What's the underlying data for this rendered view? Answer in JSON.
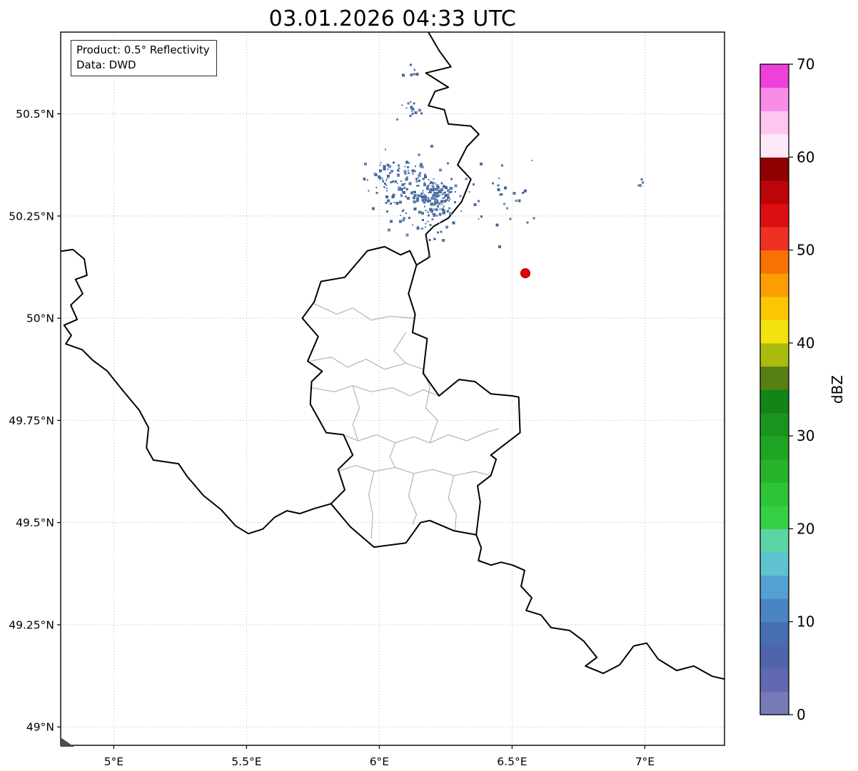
{
  "title": "03.01.2026 04:33 UTC",
  "annotation": {
    "line1": "Product: 0.5° Reflectivity",
    "line2": "Data: DWD"
  },
  "map": {
    "extent": {
      "lon_min": 4.8,
      "lon_max": 7.3,
      "lat_min": 48.955,
      "lat_max": 50.7
    },
    "x_ticks": [
      {
        "value": 5.0,
        "label": "5°E"
      },
      {
        "value": 5.5,
        "label": "5.5°E"
      },
      {
        "value": 6.0,
        "label": "6°E"
      },
      {
        "value": 6.5,
        "label": "6.5°E"
      },
      {
        "value": 7.0,
        "label": "7°E"
      }
    ],
    "y_ticks": [
      {
        "value": 50.5,
        "label": "50.5°N"
      },
      {
        "value": 50.25,
        "label": "50.25°N"
      },
      {
        "value": 50.0,
        "label": "50°N"
      },
      {
        "value": 49.75,
        "label": "49.75°N"
      },
      {
        "value": 49.5,
        "label": "49.5°N"
      },
      {
        "value": 49.25,
        "label": "49.25°N"
      },
      {
        "value": 49.0,
        "label": "49°N"
      }
    ],
    "style": {
      "country_color": "#000000",
      "internal_color": "#b3b3b3",
      "grid_color": "#b5b5b5",
      "frame_color": "#000000"
    },
    "borders": {
      "country": [
        [
          [
            6.14,
            50.13
          ],
          [
            6.19,
            50.15
          ],
          [
            6.175,
            50.205
          ],
          [
            6.205,
            50.225
          ],
          [
            6.26,
            50.245
          ],
          [
            6.31,
            50.285
          ],
          [
            6.345,
            50.34
          ],
          [
            6.295,
            50.375
          ],
          [
            6.33,
            50.42
          ],
          [
            6.375,
            50.45
          ],
          [
            6.345,
            50.47
          ],
          [
            6.26,
            50.475
          ],
          [
            6.245,
            50.51
          ],
          [
            6.185,
            50.52
          ],
          [
            6.21,
            50.555
          ],
          [
            6.26,
            50.565
          ],
          [
            6.175,
            50.6
          ],
          [
            6.27,
            50.615
          ],
          [
            6.225,
            50.655
          ],
          [
            6.18,
            50.705
          ]
        ],
        [
          [
            6.02,
            50.175
          ],
          [
            6.08,
            50.155
          ],
          [
            6.115,
            50.165
          ],
          [
            6.14,
            50.13
          ],
          [
            6.11,
            50.06
          ],
          [
            6.135,
            50.01
          ],
          [
            6.125,
            49.965
          ],
          [
            6.18,
            49.95
          ],
          [
            6.165,
            49.865
          ],
          [
            6.225,
            49.81
          ],
          [
            6.3,
            49.85
          ],
          [
            6.36,
            49.845
          ],
          [
            6.42,
            49.815
          ],
          [
            6.5,
            49.81
          ],
          [
            6.525,
            49.807
          ],
          [
            6.53,
            49.72
          ],
          [
            6.5,
            49.705
          ],
          [
            6.42,
            49.665
          ],
          [
            6.44,
            49.655
          ],
          [
            6.42,
            49.615
          ],
          [
            6.37,
            49.59
          ],
          [
            6.38,
            49.55
          ],
          [
            6.365,
            49.47
          ],
          [
            6.28,
            49.48
          ],
          [
            6.19,
            49.505
          ],
          [
            6.155,
            49.5
          ],
          [
            6.1,
            49.45
          ],
          [
            5.98,
            49.44
          ],
          [
            5.89,
            49.49
          ],
          [
            5.818,
            49.546
          ],
          [
            5.87,
            49.58
          ],
          [
            5.845,
            49.63
          ],
          [
            5.9,
            49.665
          ],
          [
            5.865,
            49.715
          ],
          [
            5.8,
            49.72
          ],
          [
            5.74,
            49.79
          ],
          [
            5.745,
            49.845
          ],
          [
            5.785,
            49.87
          ],
          [
            5.73,
            49.895
          ],
          [
            5.77,
            49.955
          ],
          [
            5.71,
            50.0
          ],
          [
            5.755,
            50.04
          ],
          [
            5.78,
            50.09
          ],
          [
            5.87,
            50.1
          ],
          [
            5.955,
            50.165
          ],
          [
            6.02,
            50.175
          ]
        ],
        [
          [
            4.8,
            50.164
          ],
          [
            4.846,
            50.168
          ],
          [
            4.889,
            50.145
          ],
          [
            4.899,
            50.105
          ],
          [
            4.856,
            50.095
          ],
          [
            4.883,
            50.06
          ],
          [
            4.838,
            50.032
          ],
          [
            4.862,
            49.997
          ],
          [
            4.813,
            49.983
          ],
          [
            4.84,
            49.958
          ],
          [
            4.819,
            49.937
          ],
          [
            4.881,
            49.923
          ],
          [
            4.921,
            49.897
          ],
          [
            4.975,
            49.871
          ],
          [
            5.028,
            49.828
          ],
          [
            5.096,
            49.775
          ],
          [
            5.131,
            49.732
          ],
          [
            5.123,
            49.683
          ],
          [
            5.149,
            49.653
          ],
          [
            5.244,
            49.644
          ],
          [
            5.276,
            49.613
          ],
          [
            5.338,
            49.566
          ],
          [
            5.405,
            49.531
          ],
          [
            5.459,
            49.492
          ],
          [
            5.507,
            49.473
          ],
          [
            5.561,
            49.484
          ],
          [
            5.606,
            49.513
          ],
          [
            5.652,
            49.529
          ],
          [
            5.701,
            49.522
          ],
          [
            5.754,
            49.534
          ],
          [
            5.818,
            49.546
          ]
        ],
        [
          [
            6.365,
            49.47
          ],
          [
            6.384,
            49.438
          ],
          [
            6.373,
            49.407
          ],
          [
            6.421,
            49.396
          ],
          [
            6.459,
            49.403
          ],
          [
            6.502,
            49.396
          ],
          [
            6.547,
            49.383
          ],
          [
            6.534,
            49.344
          ],
          [
            6.574,
            49.316
          ],
          [
            6.553,
            49.285
          ],
          [
            6.609,
            49.274
          ],
          [
            6.647,
            49.243
          ],
          [
            6.717,
            49.236
          ],
          [
            6.77,
            49.21
          ],
          [
            6.819,
            49.17
          ],
          [
            6.776,
            49.149
          ],
          [
            6.843,
            49.131
          ],
          [
            6.905,
            49.152
          ],
          [
            6.958,
            49.198
          ],
          [
            7.007,
            49.205
          ],
          [
            7.05,
            49.166
          ],
          [
            7.12,
            49.138
          ],
          [
            7.184,
            49.149
          ],
          [
            7.254,
            49.124
          ],
          [
            7.3,
            49.117
          ]
        ]
      ],
      "internal": [
        [
          [
            5.755,
            50.035
          ],
          [
            5.84,
            50.01
          ],
          [
            5.9,
            50.025
          ],
          [
            5.97,
            49.995
          ],
          [
            6.04,
            50.005
          ],
          [
            6.13,
            50.0
          ]
        ],
        [
          [
            5.74,
            49.895
          ],
          [
            5.82,
            49.905
          ],
          [
            5.88,
            49.88
          ],
          [
            5.95,
            49.9
          ],
          [
            6.02,
            49.875
          ],
          [
            6.1,
            49.89
          ],
          [
            6.165,
            49.875
          ]
        ],
        [
          [
            6.1,
            49.965
          ],
          [
            6.055,
            49.92
          ],
          [
            6.1,
            49.89
          ]
        ],
        [
          [
            5.745,
            49.83
          ],
          [
            5.83,
            49.82
          ],
          [
            5.9,
            49.835
          ],
          [
            5.97,
            49.82
          ],
          [
            6.05,
            49.83
          ],
          [
            6.115,
            49.81
          ],
          [
            6.165,
            49.825
          ],
          [
            6.225,
            49.81
          ]
        ],
        [
          [
            5.9,
            49.835
          ],
          [
            5.925,
            49.78
          ],
          [
            5.9,
            49.74
          ],
          [
            5.92,
            49.7
          ]
        ],
        [
          [
            5.865,
            49.715
          ],
          [
            5.92,
            49.7
          ],
          [
            5.99,
            49.715
          ],
          [
            6.06,
            49.695
          ],
          [
            6.13,
            49.71
          ],
          [
            6.19,
            49.695
          ],
          [
            6.26,
            49.715
          ],
          [
            6.33,
            49.7
          ],
          [
            6.4,
            49.72
          ],
          [
            6.45,
            49.73
          ]
        ],
        [
          [
            6.165,
            49.875
          ],
          [
            6.19,
            49.83
          ],
          [
            6.175,
            49.78
          ],
          [
            6.22,
            49.75
          ],
          [
            6.19,
            49.695
          ]
        ],
        [
          [
            5.845,
            49.625
          ],
          [
            5.91,
            49.64
          ],
          [
            5.98,
            49.625
          ],
          [
            6.06,
            49.635
          ],
          [
            6.13,
            49.62
          ],
          [
            6.2,
            49.63
          ],
          [
            6.28,
            49.615
          ],
          [
            6.36,
            49.625
          ],
          [
            6.42,
            49.615
          ]
        ],
        [
          [
            5.98,
            49.625
          ],
          [
            5.96,
            49.57
          ],
          [
            5.975,
            49.52
          ],
          [
            5.97,
            49.46
          ]
        ],
        [
          [
            6.13,
            49.62
          ],
          [
            6.11,
            49.565
          ],
          [
            6.14,
            49.52
          ],
          [
            6.125,
            49.495
          ]
        ],
        [
          [
            6.28,
            49.615
          ],
          [
            6.26,
            49.56
          ],
          [
            6.29,
            49.52
          ],
          [
            6.285,
            49.48
          ]
        ],
        [
          [
            6.06,
            49.695
          ],
          [
            6.04,
            49.66
          ],
          [
            6.06,
            49.635
          ]
        ]
      ]
    },
    "radar_marker": {
      "lon": 6.55,
      "lat": 50.11,
      "color": "#e50000"
    },
    "echo": {
      "colors": [
        "#54749f",
        "#4b6da6",
        "#6688bb",
        "#41639d"
      ],
      "clusters": [
        {
          "lon": 6.13,
          "lat": 50.31,
          "n": 120,
          "sx": 0.07,
          "sy": 0.045
        },
        {
          "lon": 6.215,
          "lat": 50.29,
          "n": 130,
          "sx": 0.038,
          "sy": 0.028
        },
        {
          "lon": 6.04,
          "lat": 50.345,
          "n": 40,
          "sx": 0.038,
          "sy": 0.022
        },
        {
          "lon": 6.45,
          "lat": 50.29,
          "n": 32,
          "sx": 0.09,
          "sy": 0.04
        },
        {
          "lon": 6.125,
          "lat": 50.505,
          "n": 15,
          "sx": 0.022,
          "sy": 0.012
        },
        {
          "lon": 6.12,
          "lat": 50.6,
          "n": 8,
          "sx": 0.018,
          "sy": 0.012
        },
        {
          "lon": 6.2,
          "lat": 50.215,
          "n": 12,
          "sx": 0.028,
          "sy": 0.02
        },
        {
          "lon": 7.0,
          "lat": 50.33,
          "n": 4,
          "sx": 0.012,
          "sy": 0.006
        }
      ]
    }
  },
  "colorbar": {
    "label": "dBZ",
    "vmin": 0,
    "vmax": 70,
    "ticks": [
      0,
      10,
      20,
      30,
      40,
      50,
      60,
      70
    ],
    "colors": [
      "#767bb8",
      "#6069b1",
      "#5064ab",
      "#476eb3",
      "#4a84c2",
      "#55a0d2",
      "#5fc3cf",
      "#5cd4a4",
      "#33cf45",
      "#2dc438",
      "#27b42c",
      "#20a423",
      "#1a941d",
      "#138417",
      "#577f12",
      "#a9bc0d",
      "#f2e20d",
      "#fbc704",
      "#fb9d03",
      "#f87203",
      "#ef3125",
      "#dd0f12",
      "#bb0509",
      "#8e0002",
      "#fde9f9",
      "#fcc6f1",
      "#f98ce7",
      "#ee41d9"
    ]
  }
}
